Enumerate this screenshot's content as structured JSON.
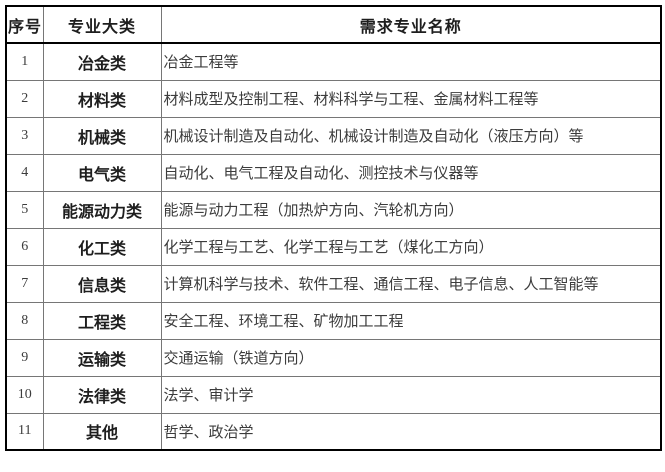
{
  "table": {
    "headers": {
      "serial": "序号",
      "category": "专业大类",
      "majors": "需求专业名称"
    },
    "rows": [
      {
        "no": "1",
        "category": "冶金类",
        "majors": "冶金工程等"
      },
      {
        "no": "2",
        "category": "材料类",
        "majors": "材料成型及控制工程、材料科学与工程、金属材料工程等"
      },
      {
        "no": "3",
        "category": "机械类",
        "majors": "机械设计制造及自动化、机械设计制造及自动化（液压方向）等"
      },
      {
        "no": "4",
        "category": "电气类",
        "majors": "自动化、电气工程及自动化、测控技术与仪器等"
      },
      {
        "no": "5",
        "category": "能源动力类",
        "majors": "能源与动力工程（加热炉方向、汽轮机方向）"
      },
      {
        "no": "6",
        "category": "化工类",
        "majors": "化学工程与工艺、化学工程与工艺（煤化工方向）"
      },
      {
        "no": "7",
        "category": "信息类",
        "majors": "计算机科学与技术、软件工程、通信工程、电子信息、人工智能等"
      },
      {
        "no": "8",
        "category": "工程类",
        "majors": "安全工程、环境工程、矿物加工工程"
      },
      {
        "no": "9",
        "category": "运输类",
        "majors": "交通运输（铁道方向）"
      },
      {
        "no": "10",
        "category": "法律类",
        "majors": "法学、审计学"
      },
      {
        "no": "11",
        "category": "其他",
        "majors": "哲学、政治学"
      }
    ],
    "colors": {
      "outer_border": "#000000",
      "inner_border": "#767676",
      "header_text": "#1e1e1e",
      "body_text": "#3c3c3c",
      "background": "#ffffff"
    }
  }
}
